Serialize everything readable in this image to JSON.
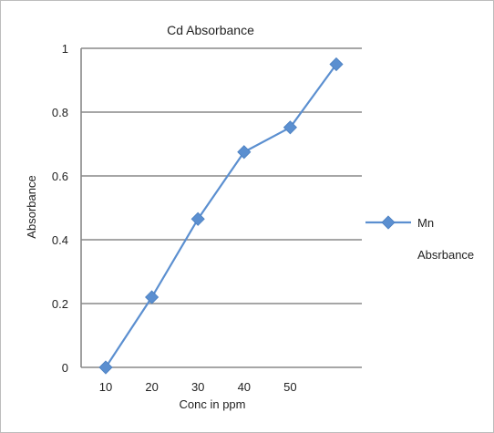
{
  "chart_data": {
    "type": "line",
    "title": "Cd Absorbance",
    "xlabel": "Conc in ppm",
    "ylabel": "Absorbance",
    "categories": [
      "10",
      "20",
      "30",
      "40",
      "50",
      ""
    ],
    "series": [
      {
        "name_lines": [
          "Mn",
          "Absrbance"
        ],
        "values": [
          0.0,
          0.22,
          0.465,
          0.675,
          0.752,
          0.95
        ],
        "color": "#5b8fd0",
        "marker": "diamond"
      }
    ],
    "ylim": [
      0,
      1
    ],
    "yticks": [
      "0",
      "0.2",
      "0.4",
      "0.6",
      "0.8",
      "1"
    ],
    "ytick_values": [
      0,
      0.2,
      0.4,
      0.6,
      0.8,
      1
    ],
    "grid": "horizontal",
    "grid_color": "#898989",
    "legend_position": "right"
  }
}
